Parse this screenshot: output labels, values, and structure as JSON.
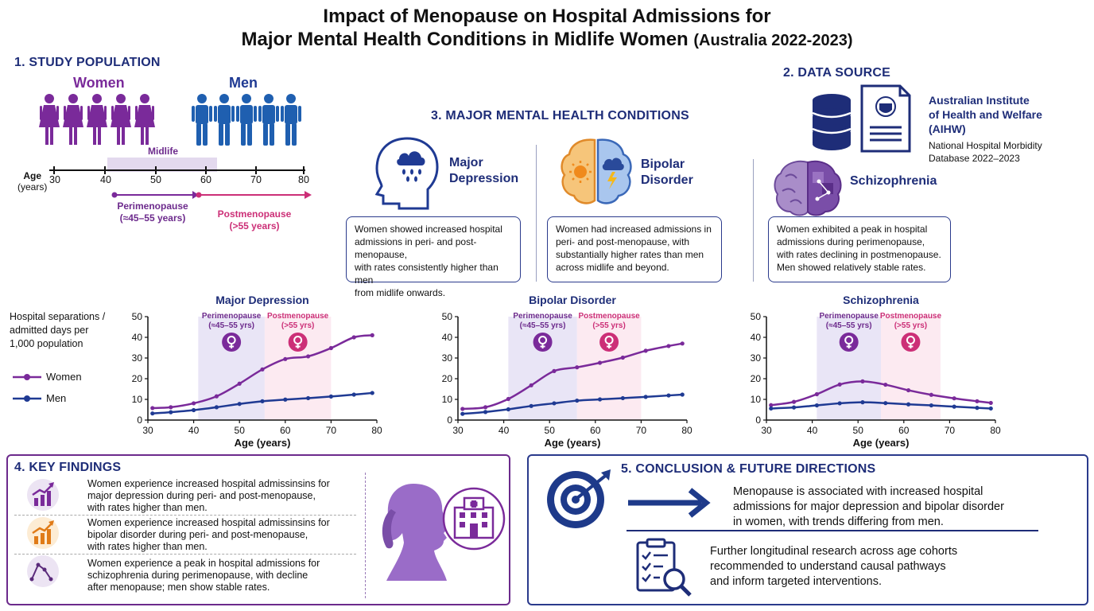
{
  "title": {
    "line1": "Impact of Menopause on Hospital Admissions for",
    "line2": "Major Mental Health Conditions in Midlife Women",
    "line2_suffix": "(Australia 2022-2023)"
  },
  "colors": {
    "women": "#7a2a9a",
    "men": "#1f3a93",
    "navy": "#1e2d78",
    "peri_shade": "#e5e0f5",
    "post_shade": "#fbe6ee",
    "pink": "#cc2f77"
  },
  "study_population": {
    "heading": "1. STUDY POPULATION",
    "women_label": "Women",
    "men_label": "Men",
    "midlife_label": "Midlife",
    "age_label_1": "Age",
    "age_label_2": "(years)",
    "age_ticks": [
      "30",
      "40",
      "50",
      "60",
      "70",
      "80"
    ],
    "peri_label_1": "Perimenopause",
    "peri_label_2": "(≈45–55 years)",
    "post_label_1": "Postmenopause",
    "post_label_2": "(>55 years)"
  },
  "conditions": {
    "heading": "3. MAJOR MENTAL HEALTH CONDITIONS",
    "depression": {
      "name_1": "Major",
      "name_2": "Depression",
      "desc_1": "Women showed increased hospital",
      "desc_2": "admissions in peri- and post-menopause,",
      "desc_3": "with rates consistently higher than men",
      "desc_4": "from midlife onwards."
    },
    "bipolar": {
      "name_1": "Bipolar",
      "name_2": "Disorder",
      "desc_1": "Women had increased admissions in",
      "desc_2": "peri- and post-menopause, with",
      "desc_3": "substantially higher rates than men",
      "desc_4": "across midlife and beyond."
    },
    "schizophrenia": {
      "name": "Schizophrenia",
      "desc_1": "Women exhibited a peak in hospital",
      "desc_2": "admissions during perimenopause,",
      "desc_3": "with rates declining in postmenopause.",
      "desc_4": "Men showed relatively stable rates."
    }
  },
  "data_source": {
    "heading": "2. DATA SOURCE",
    "org_1": "Australian Institute",
    "org_2": "of Health and Welfare",
    "org_3": "(AIHW)",
    "db_1": "National Hospital Morbidity",
    "db_2": "Database 2022–2023"
  },
  "y_axis_label": {
    "line1": "Hospital separations /",
    "line2": "admitted days per",
    "line3": "1,000 population"
  },
  "legend": {
    "women": "Women",
    "men": "Men"
  },
  "chart_data": [
    {
      "type": "line",
      "title": "Major Depression",
      "xlabel": "Age (years)",
      "xlim": [
        30,
        80
      ],
      "ylim": [
        0,
        50
      ],
      "xticks": [
        "30",
        "40",
        "50",
        "60",
        "70",
        "80"
      ],
      "yticks": [
        "0",
        "10",
        "20",
        "30",
        "40",
        "50"
      ],
      "shading": [
        {
          "label_1": "Perimenopause",
          "label_2": "(≈45–55 yrs)",
          "from": 41,
          "to": 55.5
        },
        {
          "label_1": "Postmenopause",
          "label_2": "(>55 yrs)",
          "from": 55.5,
          "to": 70
        }
      ],
      "series": [
        {
          "name": "Women",
          "x": [
            31,
            35,
            40,
            45,
            50,
            55,
            60,
            65,
            70,
            75,
            79
          ],
          "y": [
            5.8,
            6.2,
            8.1,
            11.5,
            17.6,
            24.5,
            29.5,
            30.8,
            34.8,
            40,
            41
          ]
        },
        {
          "name": "Men",
          "x": [
            31,
            35,
            40,
            45,
            50,
            55,
            60,
            65,
            70,
            75,
            79
          ],
          "y": [
            3.2,
            3.8,
            4.8,
            6.2,
            7.8,
            9.1,
            9.9,
            10.6,
            11.4,
            12.3,
            13.1
          ]
        }
      ]
    },
    {
      "type": "line",
      "title": "Bipolar Disorder",
      "xlabel": "Age (years)",
      "xlim": [
        30,
        80
      ],
      "ylim": [
        0,
        50
      ],
      "xticks": [
        "30",
        "40",
        "50",
        "60",
        "70",
        "80"
      ],
      "yticks": [
        "0",
        "10",
        "20",
        "30",
        "40",
        "50"
      ],
      "shading": [
        {
          "label_1": "Perimenopause",
          "label_2": "(≈45–55 yrs)",
          "from": 41,
          "to": 56
        },
        {
          "label_1": "Postmenopause",
          "label_2": "(>55 yrs)",
          "from": 56,
          "to": 70
        }
      ],
      "series": [
        {
          "name": "Women",
          "x": [
            31,
            36,
            41,
            46,
            51,
            56,
            61,
            66,
            71,
            76,
            79
          ],
          "y": [
            5.4,
            6.2,
            10.2,
            16.8,
            23.7,
            25.5,
            27.7,
            30.2,
            33.5,
            35.8,
            37
          ]
        },
        {
          "name": "Men",
          "x": [
            31,
            36,
            41,
            46,
            51,
            56,
            61,
            66,
            71,
            76,
            79
          ],
          "y": [
            3,
            3.9,
            5.2,
            6.8,
            8.1,
            9.4,
            10,
            10.6,
            11.2,
            11.9,
            12.3
          ]
        }
      ]
    },
    {
      "type": "line",
      "title": "Schizophrenia",
      "xlabel": "Age (years)",
      "xlim": [
        30,
        80
      ],
      "ylim": [
        0,
        50
      ],
      "xticks": [
        "30",
        "40",
        "50",
        "60",
        "70",
        "80"
      ],
      "yticks": [
        "0",
        "10",
        "20",
        "30",
        "40",
        "50"
      ],
      "shading": [
        {
          "label_1": "Perimenopause",
          "label_2": "(≈45–55 yrs)",
          "from": 41,
          "to": 55
        },
        {
          "label_1": "Postmenopause",
          "label_2": "(>55 yrs)",
          "from": 55,
          "to": 68
        }
      ],
      "series": [
        {
          "name": "Women",
          "x": [
            31,
            36,
            41,
            46,
            51,
            56,
            61,
            66,
            71,
            76,
            79
          ],
          "y": [
            7.2,
            8.8,
            12.5,
            17.2,
            18.7,
            17.1,
            14.4,
            12.2,
            10.5,
            9.1,
            8.3
          ]
        },
        {
          "name": "Men",
          "x": [
            31,
            36,
            41,
            46,
            51,
            56,
            61,
            66,
            71,
            76,
            79
          ],
          "y": [
            5.6,
            6.1,
            7.1,
            8.1,
            8.6,
            8.2,
            7.6,
            7.1,
            6.5,
            5.9,
            5.6
          ]
        }
      ]
    }
  ],
  "key_findings": {
    "heading": "4. KEY FINDINGS",
    "f1_1": "Women experience increased hospital admissinsins for",
    "f1_2": "major depression during peri- and post-menopause,",
    "f1_3": "with rates higher than men.",
    "f2_1": "Women experience increased hospital admissinsins for",
    "f2_2": "bipolar disorder during peri- and post-menopause,",
    "f2_3": "with rates higher than men.",
    "f3_1": "Women experience a peak in hospital admissions for",
    "f3_2": "schizophrenia during perimenopause, with decline",
    "f3_3": "after menopause; men show stable rates."
  },
  "conclusion": {
    "heading": "5. CONCLUSION & FUTURE DIRECTIONS",
    "c1_1": "Menopause is associated with increased hospital",
    "c1_2": "admissions for major depression and bipolar disorder",
    "c1_3": "in women, with trends differing from men.",
    "c2_1": "Further longitudinal research across age cohorts",
    "c2_2": "recommended to understand causal pathways",
    "c2_3": "and inform targeted interventions."
  }
}
